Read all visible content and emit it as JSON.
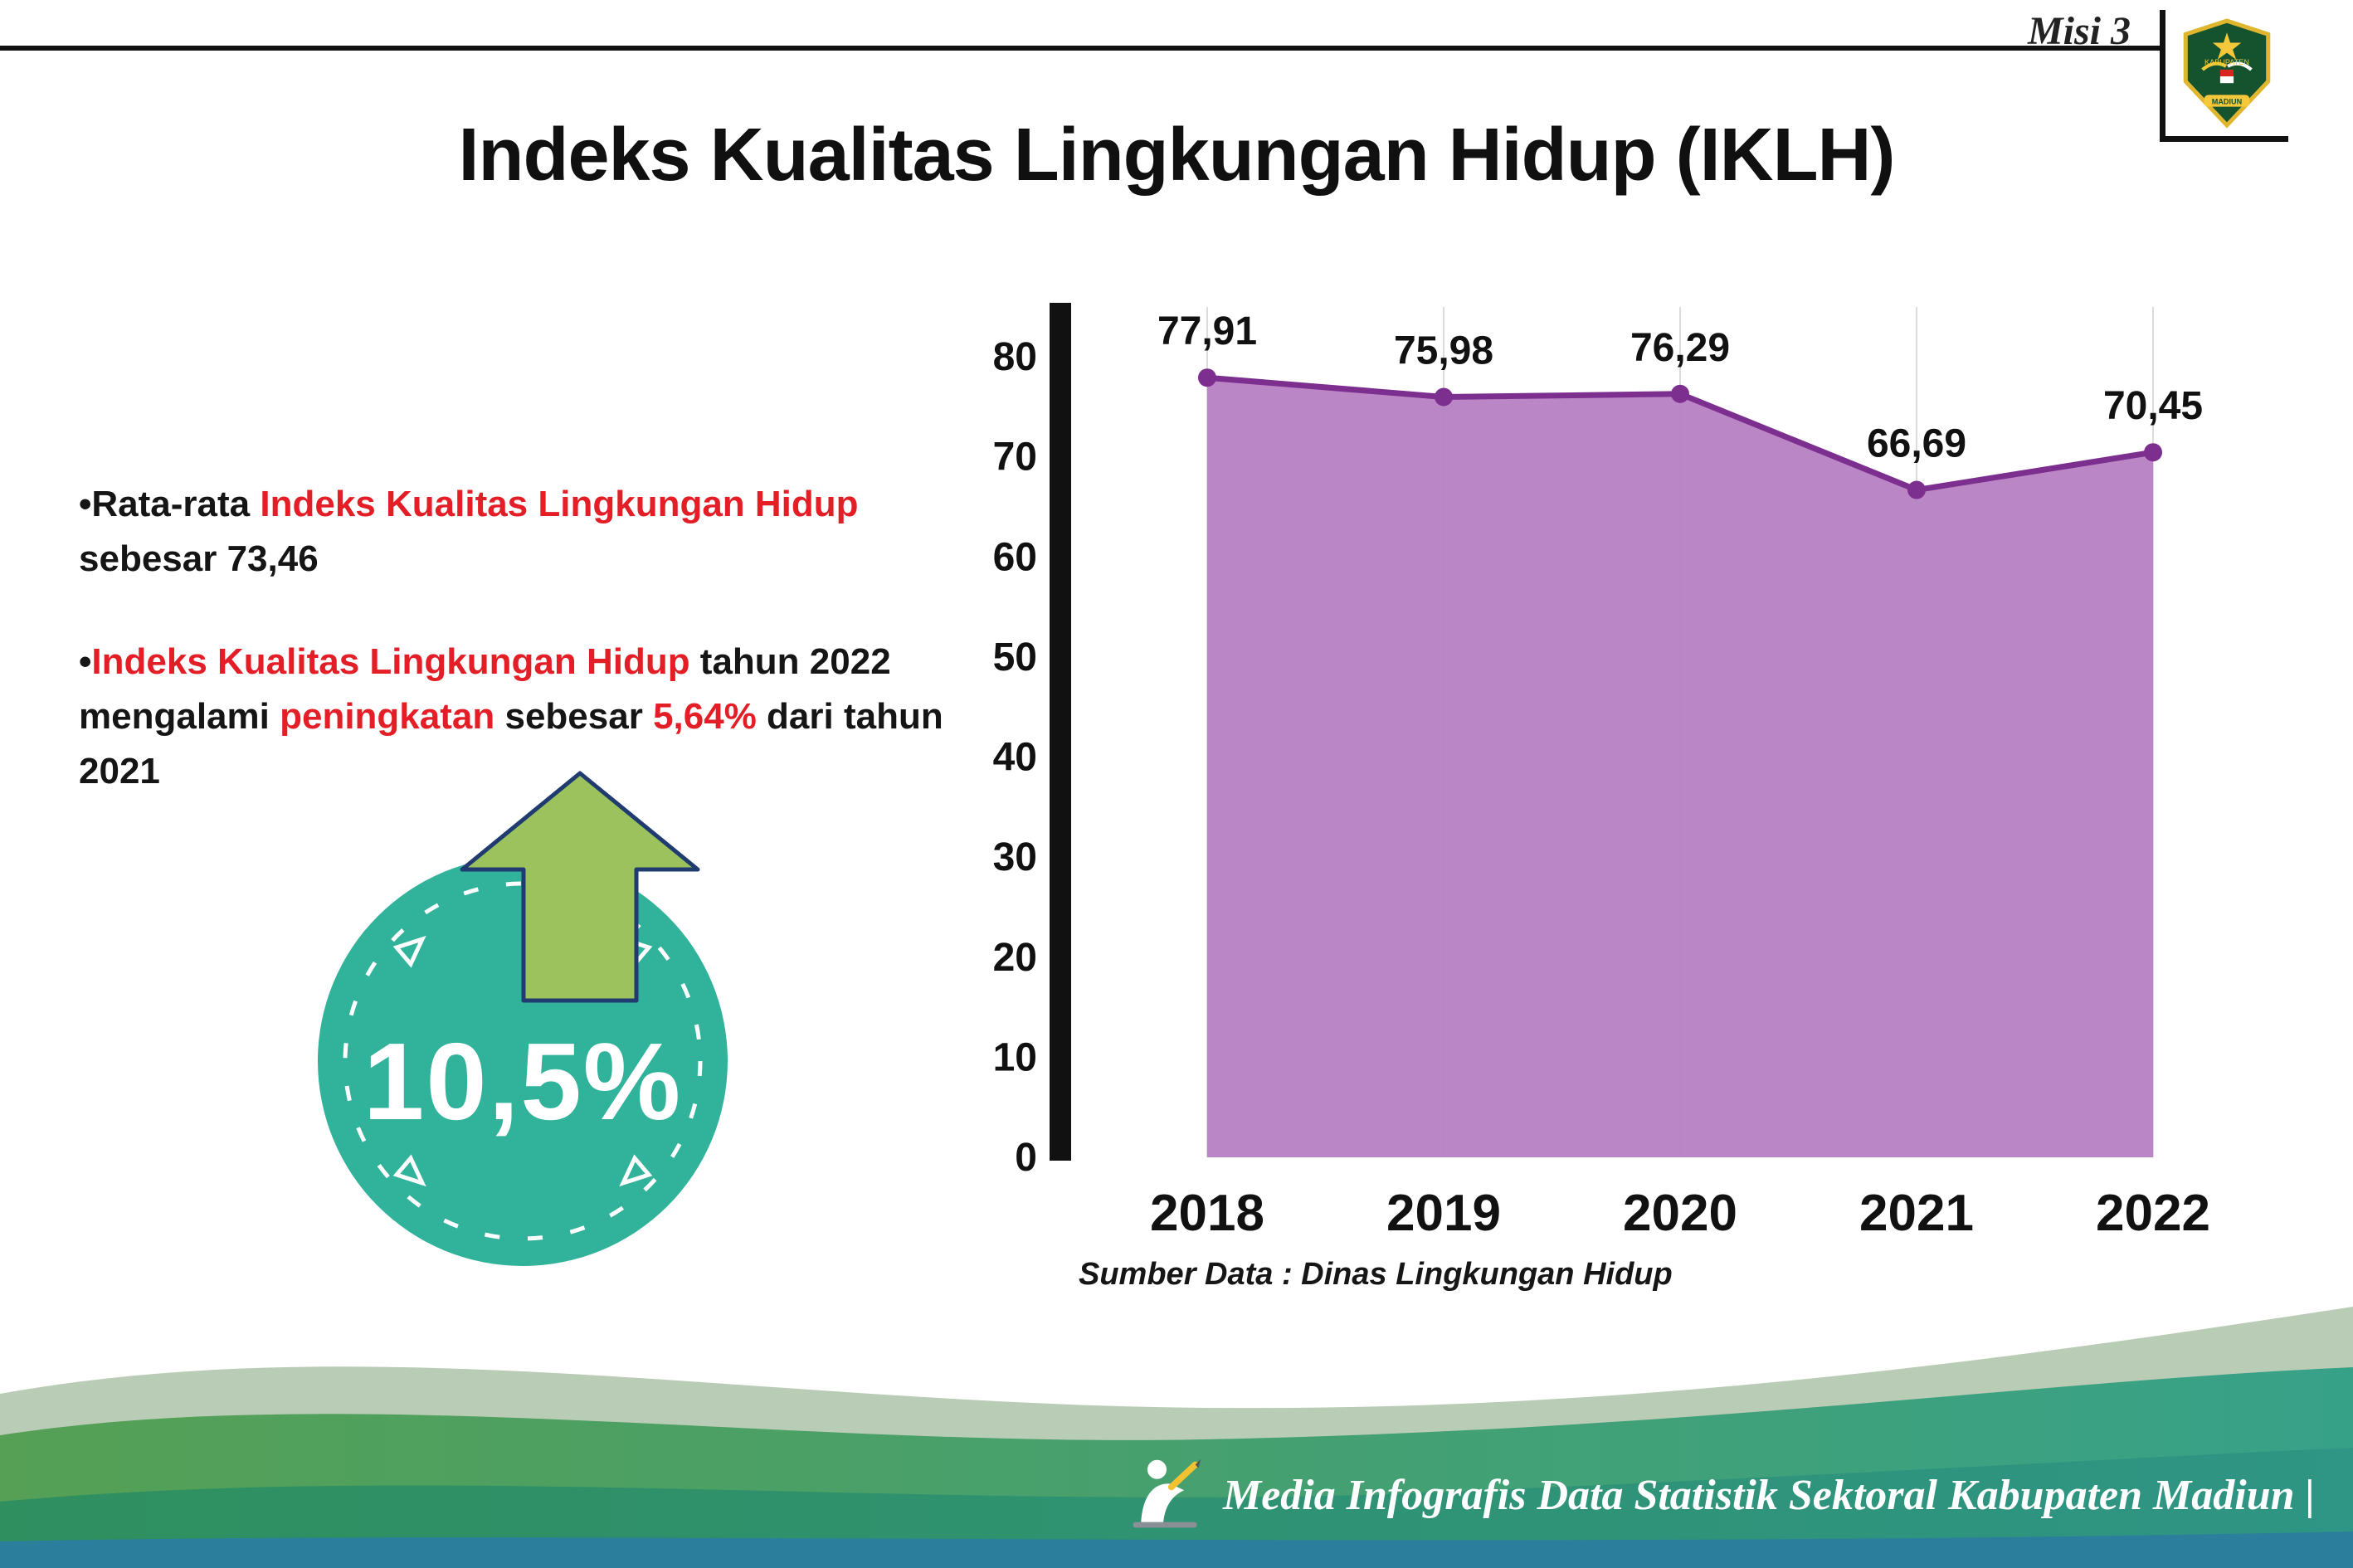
{
  "header": {
    "misi_label": "Misi 3",
    "title": "Indeks Kualitas Lingkungan Hidup (IKLH)",
    "logo": {
      "text_top": "KABUPATEN",
      "text_bottom": "MADIUN"
    }
  },
  "bullets": {
    "bullet_char": "•",
    "b1": {
      "pre": "Rata-rata ",
      "highlight": "Indeks Kualitas Lingkungan Hidup",
      "post": " sebesar 73,46"
    },
    "b2": {
      "highlight1": "Indeks Kualitas Lingkungan Hidup",
      "mid1": " tahun 2022 mengalami ",
      "highlight2": "peningkatan",
      "mid2": " sebesar ",
      "highlight3": "5,64%",
      "post": " dari tahun 2021"
    }
  },
  "badge": {
    "value": "10,5%"
  },
  "chart": {
    "source_note": "Sumber Data : Dinas Lingkungan Hidup"
  },
  "footer": {
    "credit": "Media Infografis Data Statistik Sektoral Kabupaten Madiun |"
  },
  "chart_data": {
    "type": "area",
    "categories": [
      "2018",
      "2019",
      "2020",
      "2021",
      "2022"
    ],
    "values": [
      77.91,
      75.98,
      76.29,
      66.69,
      70.45
    ],
    "value_labels": [
      "77,91",
      "75,98",
      "76,29",
      "66,69",
      "70,45"
    ],
    "title": "",
    "xlabel": "",
    "ylabel": "",
    "ylim": [
      0,
      80
    ],
    "yticks": [
      0,
      10,
      20,
      30,
      40,
      50,
      60,
      70,
      80
    ],
    "grid": "faint-vertical",
    "legend": "none",
    "fill_color": "#b77fc3",
    "line_color": "#7c2f8f"
  },
  "colors": {
    "highlight_red": "#e31e26",
    "badge_teal": "#30b29b",
    "arrow_green": "#9cc25e",
    "arrow_outline": "#1f3b70",
    "chart_fill": "#b77fc3",
    "chart_line": "#7c2f8f"
  }
}
